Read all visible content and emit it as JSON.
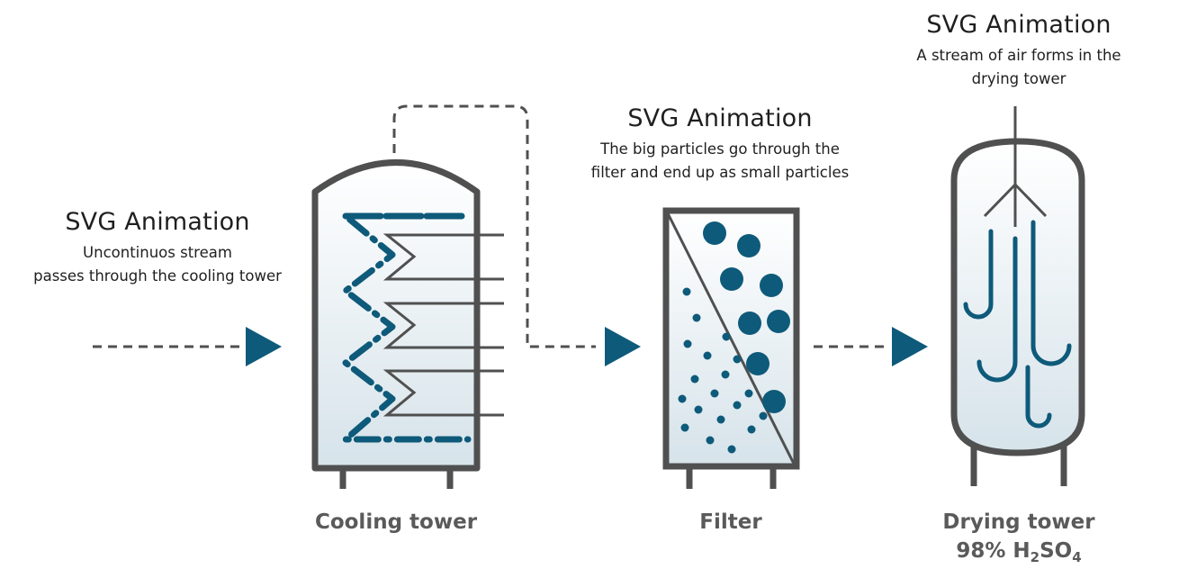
{
  "stages": [
    {
      "heading": "SVG Animation",
      "description": [
        "Uncontinuos stream",
        "passes through the cooling tower"
      ]
    },
    {
      "heading": "SVG Animation",
      "description": [
        "The big particles go through the",
        "filter and end up as small particles"
      ]
    },
    {
      "heading": "SVG Animation",
      "description": [
        "A stream of air forms in the",
        "drying tower"
      ]
    }
  ],
  "captions": {
    "cooling_tower": "Cooling tower",
    "filter": "Filter",
    "drying_tower": "Drying tower",
    "drying_percent": "98% H",
    "formula_sub_1": "2",
    "formula_mid": "SO",
    "formula_sub_2": "4"
  },
  "colors": {
    "accent": "#0e5a7a",
    "outline": "#505050",
    "fill_top": "#ffffff",
    "fill_bottom": "#d6e3ea"
  }
}
